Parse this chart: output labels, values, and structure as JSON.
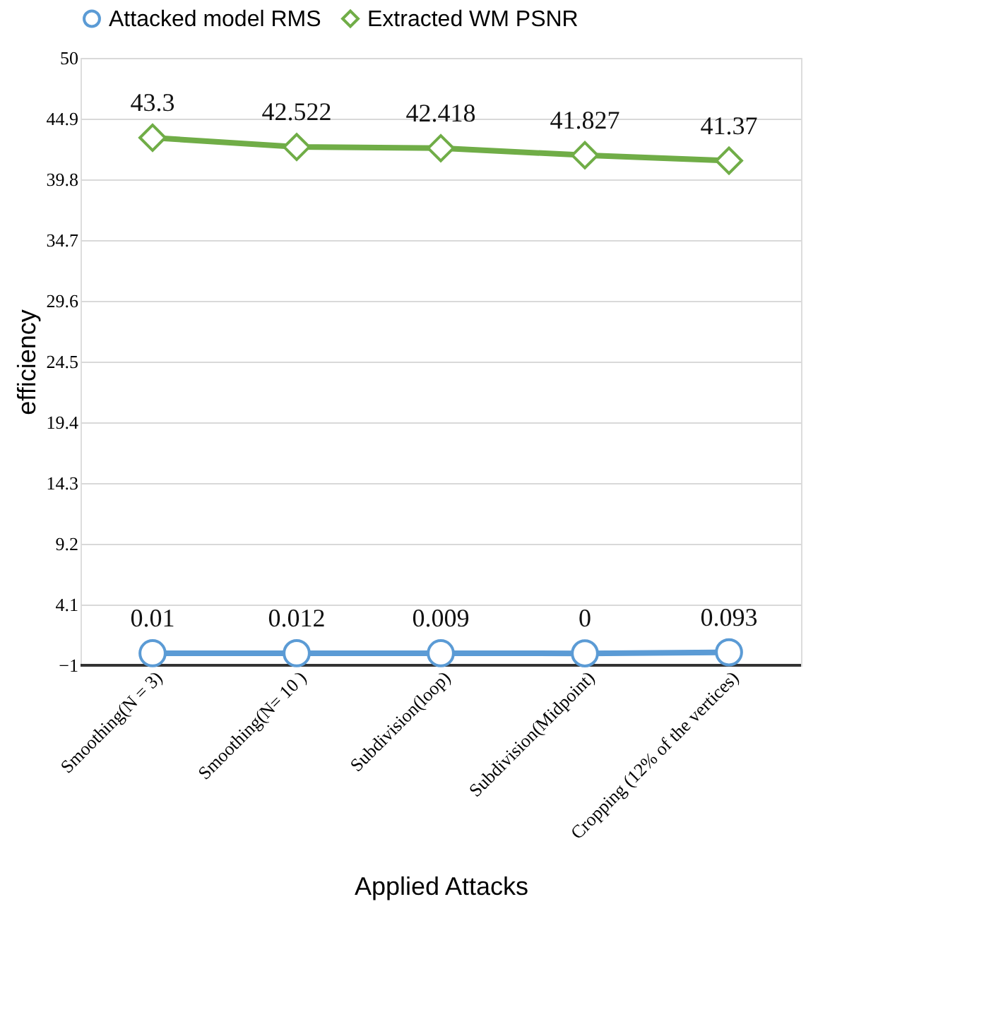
{
  "chart_data": {
    "type": "line",
    "xlabel": "Applied Attacks",
    "ylabel": "efficiency",
    "categories": [
      "Smoothing(N = 3)",
      "Smoothing(N= 10 )",
      "Subdivision(loop)",
      "Subdivision(Midpoint)",
      "Cropping  (12% of the vertices)"
    ],
    "series": [
      {
        "name": "Attacked model RMS",
        "color": "#5b9bd5",
        "marker": "circle",
        "values": [
          0.01,
          0.012,
          0.009,
          0,
          0.093
        ]
      },
      {
        "name": "Extracted WM PSNR",
        "color": "#70ad47",
        "marker": "diamond",
        "values": [
          43.3,
          42.522,
          42.418,
          41.827,
          41.37
        ]
      }
    ],
    "ylim": [
      -1,
      50
    ],
    "yticks": [
      -1,
      4.1,
      9.2,
      14.3,
      19.4,
      24.5,
      29.6,
      34.7,
      39.8,
      44.9,
      50
    ],
    "grid": "y",
    "legend": "top",
    "data_labels": true,
    "line_style": "solid"
  }
}
